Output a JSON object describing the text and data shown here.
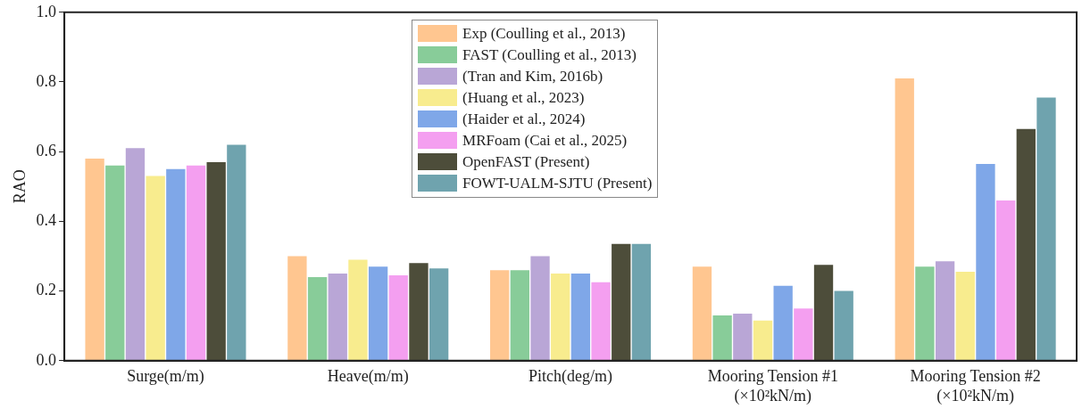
{
  "chart_data": {
    "type": "bar",
    "ylabel": "RAO",
    "categories": [
      "Surge(m/m)",
      "Heave(m/m)",
      "Pitch(deg/m)",
      "Mooring Tension #1\n(×10²kN/m)",
      "Mooring Tension #2\n(×10²kN/m)"
    ],
    "series": [
      {
        "name": "Exp (Coulling et al., 2013)",
        "color": "#ffc690",
        "values": [
          0.58,
          0.3,
          0.26,
          0.27,
          0.81
        ]
      },
      {
        "name": "FAST (Coulling et al., 2013)",
        "color": "#88cc99",
        "values": [
          0.56,
          0.24,
          0.26,
          0.13,
          0.27
        ]
      },
      {
        "name": "(Tran and Kim, 2016b)",
        "color": "#b9a6d6",
        "values": [
          0.61,
          0.25,
          0.3,
          0.135,
          0.285
        ]
      },
      {
        "name": "(Huang et al., 2023)",
        "color": "#f8ec8e",
        "values": [
          0.53,
          0.29,
          0.25,
          0.115,
          0.255
        ]
      },
      {
        "name": "(Haider et al., 2024)",
        "color": "#7fa7e8",
        "values": [
          0.55,
          0.27,
          0.25,
          0.215,
          0.565
        ]
      },
      {
        "name": "MRFoam (Cai et al., 2025)",
        "color": "#f49ff0",
        "values": [
          0.56,
          0.245,
          0.225,
          0.15,
          0.46
        ]
      },
      {
        "name": "OpenFAST (Present)",
        "color": "#4d4d3a",
        "values": [
          0.57,
          0.28,
          0.335,
          0.275,
          0.665
        ]
      },
      {
        "name": "FOWT-UALM-SJTU (Present)",
        "color": "#6fa3ae",
        "values": [
          0.62,
          0.265,
          0.335,
          0.2,
          0.755
        ]
      }
    ],
    "ylim": [
      0,
      1
    ],
    "yticks": [
      {
        "value": 0,
        "label": "0.0"
      },
      {
        "value": 0.2,
        "label": "0.2"
      },
      {
        "value": 0.4,
        "label": "0.4"
      },
      {
        "value": 0.6,
        "label": "0.6"
      },
      {
        "value": 0.8,
        "label": "0.8"
      },
      {
        "value": 1,
        "label": "1.0"
      }
    ],
    "grid": false,
    "legend": "top"
  }
}
